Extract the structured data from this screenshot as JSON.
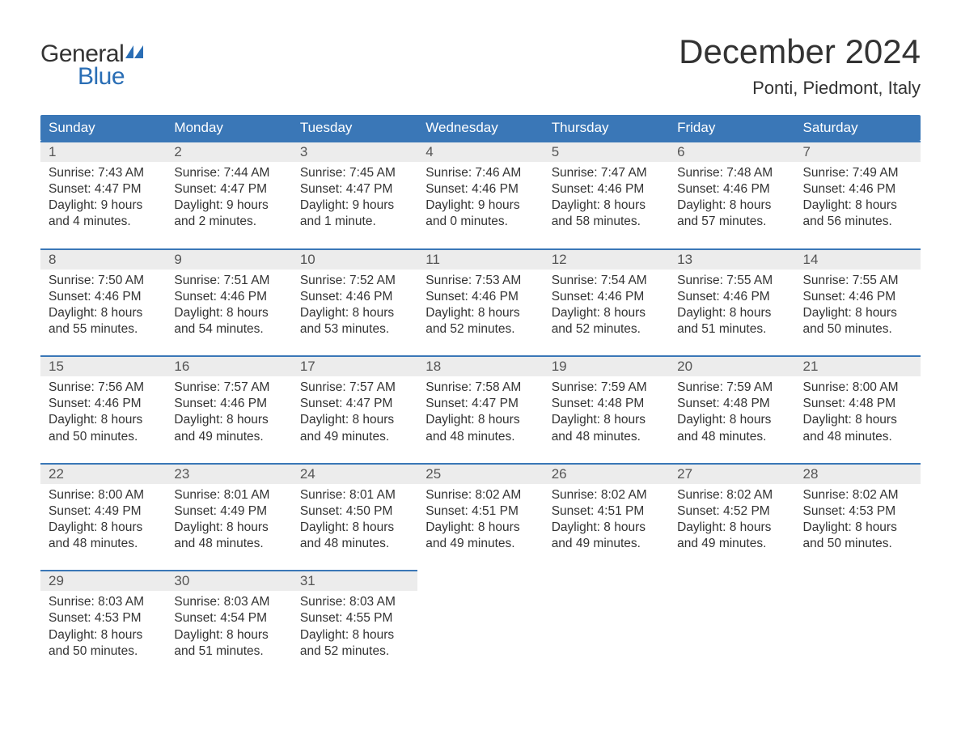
{
  "logo": {
    "word1": "General",
    "word2": "Blue",
    "word1_color": "#333333",
    "word2_color": "#2a6eb5",
    "flag_color": "#2a6eb5"
  },
  "header": {
    "month_title": "December 2024",
    "location": "Ponti, Piedmont, Italy",
    "title_color": "#333333",
    "title_fontsize": 42,
    "location_fontsize": 22
  },
  "calendar": {
    "header_bg": "#3a77b7",
    "header_text_color": "#ffffff",
    "daynum_bg": "#ececec",
    "daynum_border_color": "#3a77b7",
    "body_text_color": "#333333",
    "day_labels": [
      "Sunday",
      "Monday",
      "Tuesday",
      "Wednesday",
      "Thursday",
      "Friday",
      "Saturday"
    ],
    "weeks": [
      [
        {
          "num": "1",
          "sunrise": "Sunrise: 7:43 AM",
          "sunset": "Sunset: 4:47 PM",
          "dl1": "Daylight: 9 hours",
          "dl2": "and 4 minutes."
        },
        {
          "num": "2",
          "sunrise": "Sunrise: 7:44 AM",
          "sunset": "Sunset: 4:47 PM",
          "dl1": "Daylight: 9 hours",
          "dl2": "and 2 minutes."
        },
        {
          "num": "3",
          "sunrise": "Sunrise: 7:45 AM",
          "sunset": "Sunset: 4:47 PM",
          "dl1": "Daylight: 9 hours",
          "dl2": "and 1 minute."
        },
        {
          "num": "4",
          "sunrise": "Sunrise: 7:46 AM",
          "sunset": "Sunset: 4:46 PM",
          "dl1": "Daylight: 9 hours",
          "dl2": "and 0 minutes."
        },
        {
          "num": "5",
          "sunrise": "Sunrise: 7:47 AM",
          "sunset": "Sunset: 4:46 PM",
          "dl1": "Daylight: 8 hours",
          "dl2": "and 58 minutes."
        },
        {
          "num": "6",
          "sunrise": "Sunrise: 7:48 AM",
          "sunset": "Sunset: 4:46 PM",
          "dl1": "Daylight: 8 hours",
          "dl2": "and 57 minutes."
        },
        {
          "num": "7",
          "sunrise": "Sunrise: 7:49 AM",
          "sunset": "Sunset: 4:46 PM",
          "dl1": "Daylight: 8 hours",
          "dl2": "and 56 minutes."
        }
      ],
      [
        {
          "num": "8",
          "sunrise": "Sunrise: 7:50 AM",
          "sunset": "Sunset: 4:46 PM",
          "dl1": "Daylight: 8 hours",
          "dl2": "and 55 minutes."
        },
        {
          "num": "9",
          "sunrise": "Sunrise: 7:51 AM",
          "sunset": "Sunset: 4:46 PM",
          "dl1": "Daylight: 8 hours",
          "dl2": "and 54 minutes."
        },
        {
          "num": "10",
          "sunrise": "Sunrise: 7:52 AM",
          "sunset": "Sunset: 4:46 PM",
          "dl1": "Daylight: 8 hours",
          "dl2": "and 53 minutes."
        },
        {
          "num": "11",
          "sunrise": "Sunrise: 7:53 AM",
          "sunset": "Sunset: 4:46 PM",
          "dl1": "Daylight: 8 hours",
          "dl2": "and 52 minutes."
        },
        {
          "num": "12",
          "sunrise": "Sunrise: 7:54 AM",
          "sunset": "Sunset: 4:46 PM",
          "dl1": "Daylight: 8 hours",
          "dl2": "and 52 minutes."
        },
        {
          "num": "13",
          "sunrise": "Sunrise: 7:55 AM",
          "sunset": "Sunset: 4:46 PM",
          "dl1": "Daylight: 8 hours",
          "dl2": "and 51 minutes."
        },
        {
          "num": "14",
          "sunrise": "Sunrise: 7:55 AM",
          "sunset": "Sunset: 4:46 PM",
          "dl1": "Daylight: 8 hours",
          "dl2": "and 50 minutes."
        }
      ],
      [
        {
          "num": "15",
          "sunrise": "Sunrise: 7:56 AM",
          "sunset": "Sunset: 4:46 PM",
          "dl1": "Daylight: 8 hours",
          "dl2": "and 50 minutes."
        },
        {
          "num": "16",
          "sunrise": "Sunrise: 7:57 AM",
          "sunset": "Sunset: 4:46 PM",
          "dl1": "Daylight: 8 hours",
          "dl2": "and 49 minutes."
        },
        {
          "num": "17",
          "sunrise": "Sunrise: 7:57 AM",
          "sunset": "Sunset: 4:47 PM",
          "dl1": "Daylight: 8 hours",
          "dl2": "and 49 minutes."
        },
        {
          "num": "18",
          "sunrise": "Sunrise: 7:58 AM",
          "sunset": "Sunset: 4:47 PM",
          "dl1": "Daylight: 8 hours",
          "dl2": "and 48 minutes."
        },
        {
          "num": "19",
          "sunrise": "Sunrise: 7:59 AM",
          "sunset": "Sunset: 4:48 PM",
          "dl1": "Daylight: 8 hours",
          "dl2": "and 48 minutes."
        },
        {
          "num": "20",
          "sunrise": "Sunrise: 7:59 AM",
          "sunset": "Sunset: 4:48 PM",
          "dl1": "Daylight: 8 hours",
          "dl2": "and 48 minutes."
        },
        {
          "num": "21",
          "sunrise": "Sunrise: 8:00 AM",
          "sunset": "Sunset: 4:48 PM",
          "dl1": "Daylight: 8 hours",
          "dl2": "and 48 minutes."
        }
      ],
      [
        {
          "num": "22",
          "sunrise": "Sunrise: 8:00 AM",
          "sunset": "Sunset: 4:49 PM",
          "dl1": "Daylight: 8 hours",
          "dl2": "and 48 minutes."
        },
        {
          "num": "23",
          "sunrise": "Sunrise: 8:01 AM",
          "sunset": "Sunset: 4:49 PM",
          "dl1": "Daylight: 8 hours",
          "dl2": "and 48 minutes."
        },
        {
          "num": "24",
          "sunrise": "Sunrise: 8:01 AM",
          "sunset": "Sunset: 4:50 PM",
          "dl1": "Daylight: 8 hours",
          "dl2": "and 48 minutes."
        },
        {
          "num": "25",
          "sunrise": "Sunrise: 8:02 AM",
          "sunset": "Sunset: 4:51 PM",
          "dl1": "Daylight: 8 hours",
          "dl2": "and 49 minutes."
        },
        {
          "num": "26",
          "sunrise": "Sunrise: 8:02 AM",
          "sunset": "Sunset: 4:51 PM",
          "dl1": "Daylight: 8 hours",
          "dl2": "and 49 minutes."
        },
        {
          "num": "27",
          "sunrise": "Sunrise: 8:02 AM",
          "sunset": "Sunset: 4:52 PM",
          "dl1": "Daylight: 8 hours",
          "dl2": "and 49 minutes."
        },
        {
          "num": "28",
          "sunrise": "Sunrise: 8:02 AM",
          "sunset": "Sunset: 4:53 PM",
          "dl1": "Daylight: 8 hours",
          "dl2": "and 50 minutes."
        }
      ],
      [
        {
          "num": "29",
          "sunrise": "Sunrise: 8:03 AM",
          "sunset": "Sunset: 4:53 PM",
          "dl1": "Daylight: 8 hours",
          "dl2": "and 50 minutes."
        },
        {
          "num": "30",
          "sunrise": "Sunrise: 8:03 AM",
          "sunset": "Sunset: 4:54 PM",
          "dl1": "Daylight: 8 hours",
          "dl2": "and 51 minutes."
        },
        {
          "num": "31",
          "sunrise": "Sunrise: 8:03 AM",
          "sunset": "Sunset: 4:55 PM",
          "dl1": "Daylight: 8 hours",
          "dl2": "and 52 minutes."
        },
        {
          "num": "",
          "sunrise": "",
          "sunset": "",
          "dl1": "",
          "dl2": ""
        },
        {
          "num": "",
          "sunrise": "",
          "sunset": "",
          "dl1": "",
          "dl2": ""
        },
        {
          "num": "",
          "sunrise": "",
          "sunset": "",
          "dl1": "",
          "dl2": ""
        },
        {
          "num": "",
          "sunrise": "",
          "sunset": "",
          "dl1": "",
          "dl2": ""
        }
      ]
    ]
  }
}
